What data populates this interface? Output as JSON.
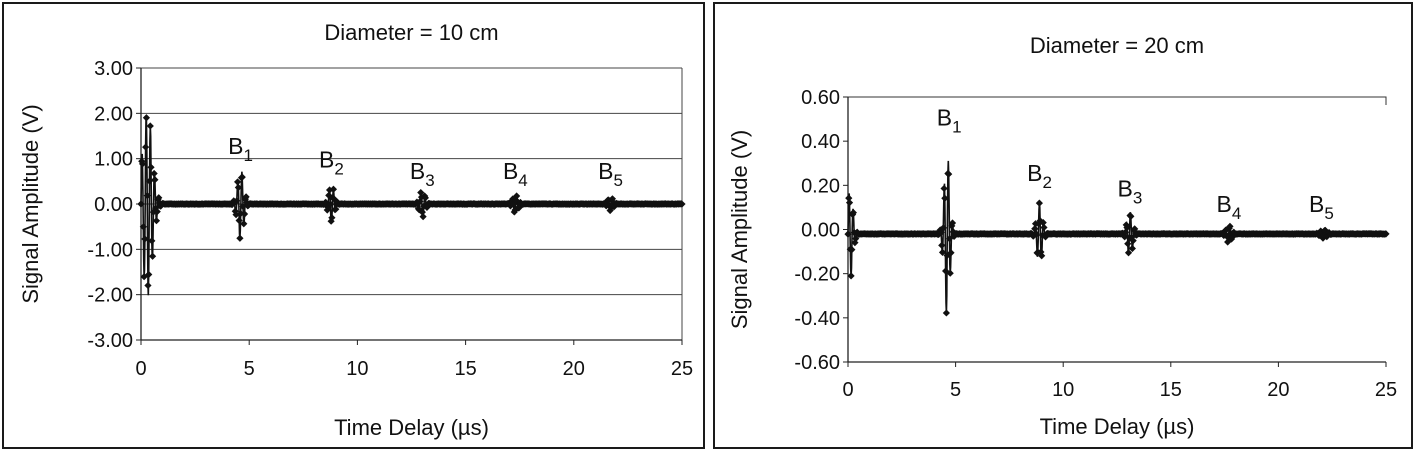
{
  "chart_data": [
    {
      "type": "line",
      "title": "Diameter = 10 cm",
      "xlabel": "Time Delay (µs)",
      "ylabel": "Signal Amplitude (V)",
      "xlim": [
        0,
        25
      ],
      "ylim": [
        -3.0,
        3.0
      ],
      "x_ticks": [
        "0",
        "5",
        "10",
        "15",
        "20",
        "25"
      ],
      "y_ticks": [
        "3.00",
        "2.00",
        "1.00",
        "0.00",
        "-1.00",
        "-2.00",
        "-3.00"
      ],
      "grid": "horizontal",
      "marker": "diamond",
      "annotations": [
        {
          "base": "B",
          "sub": "1",
          "x": 4.6,
          "y": 1.1
        },
        {
          "base": "B",
          "sub": "2",
          "x": 8.8,
          "y": 0.8
        },
        {
          "base": "B",
          "sub": "3",
          "x": 13.0,
          "y": 0.55
        },
        {
          "base": "B",
          "sub": "4",
          "x": 17.3,
          "y": 0.55
        },
        {
          "base": "B",
          "sub": "5",
          "x": 21.7,
          "y": 0.55
        }
      ],
      "series": [
        {
          "echoes": [
            {
              "t": 0.3,
              "amp": 2.05,
              "width": 0.7
            },
            {
              "t": 4.6,
              "amp": 0.78,
              "width": 0.45
            },
            {
              "t": 8.8,
              "amp": 0.42,
              "width": 0.4
            },
            {
              "t": 13.0,
              "amp": 0.3,
              "width": 0.4
            },
            {
              "t": 17.3,
              "amp": 0.2,
              "width": 0.4
            },
            {
              "t": 21.7,
              "amp": 0.15,
              "width": 0.4
            }
          ],
          "baseline": 0.0,
          "x_end": 25
        }
      ]
    },
    {
      "type": "line",
      "title": "Diameter = 20 cm",
      "xlabel": "Time Delay (µs)",
      "ylabel": "Signal Amplitude (V)",
      "xlim": [
        0,
        25
      ],
      "ylim": [
        -0.6,
        0.6
      ],
      "x_ticks": [
        "0",
        "5",
        "10",
        "15",
        "20",
        "25"
      ],
      "y_ticks": [
        "0.60",
        "0.40",
        "0.20",
        "0.00",
        "-0.20",
        "-0.40",
        "-0.60"
      ],
      "grid": "none",
      "marker": "diamond",
      "annotations": [
        {
          "base": "B",
          "sub": "1",
          "x": 4.7,
          "y": 0.47
        },
        {
          "base": "B",
          "sub": "2",
          "x": 8.9,
          "y": 0.22
        },
        {
          "base": "B",
          "sub": "3",
          "x": 13.1,
          "y": 0.15
        },
        {
          "base": "B",
          "sub": "4",
          "x": 17.7,
          "y": 0.08
        },
        {
          "base": "B",
          "sub": "5",
          "x": 22.0,
          "y": 0.08
        }
      ],
      "series": [
        {
          "echoes": [
            {
              "t": 0.1,
              "amp": 0.2,
              "width": 0.4
            },
            {
              "t": 4.6,
              "amp": 0.37,
              "width": 0.4
            },
            {
              "t": 8.9,
              "amp": 0.14,
              "width": 0.4
            },
            {
              "t": 13.1,
              "amp": 0.1,
              "width": 0.4
            },
            {
              "t": 17.7,
              "amp": 0.04,
              "width": 0.4
            },
            {
              "t": 22.1,
              "amp": 0.02,
              "width": 0.5
            }
          ],
          "baseline": -0.02,
          "x_end": 25
        }
      ]
    }
  ]
}
